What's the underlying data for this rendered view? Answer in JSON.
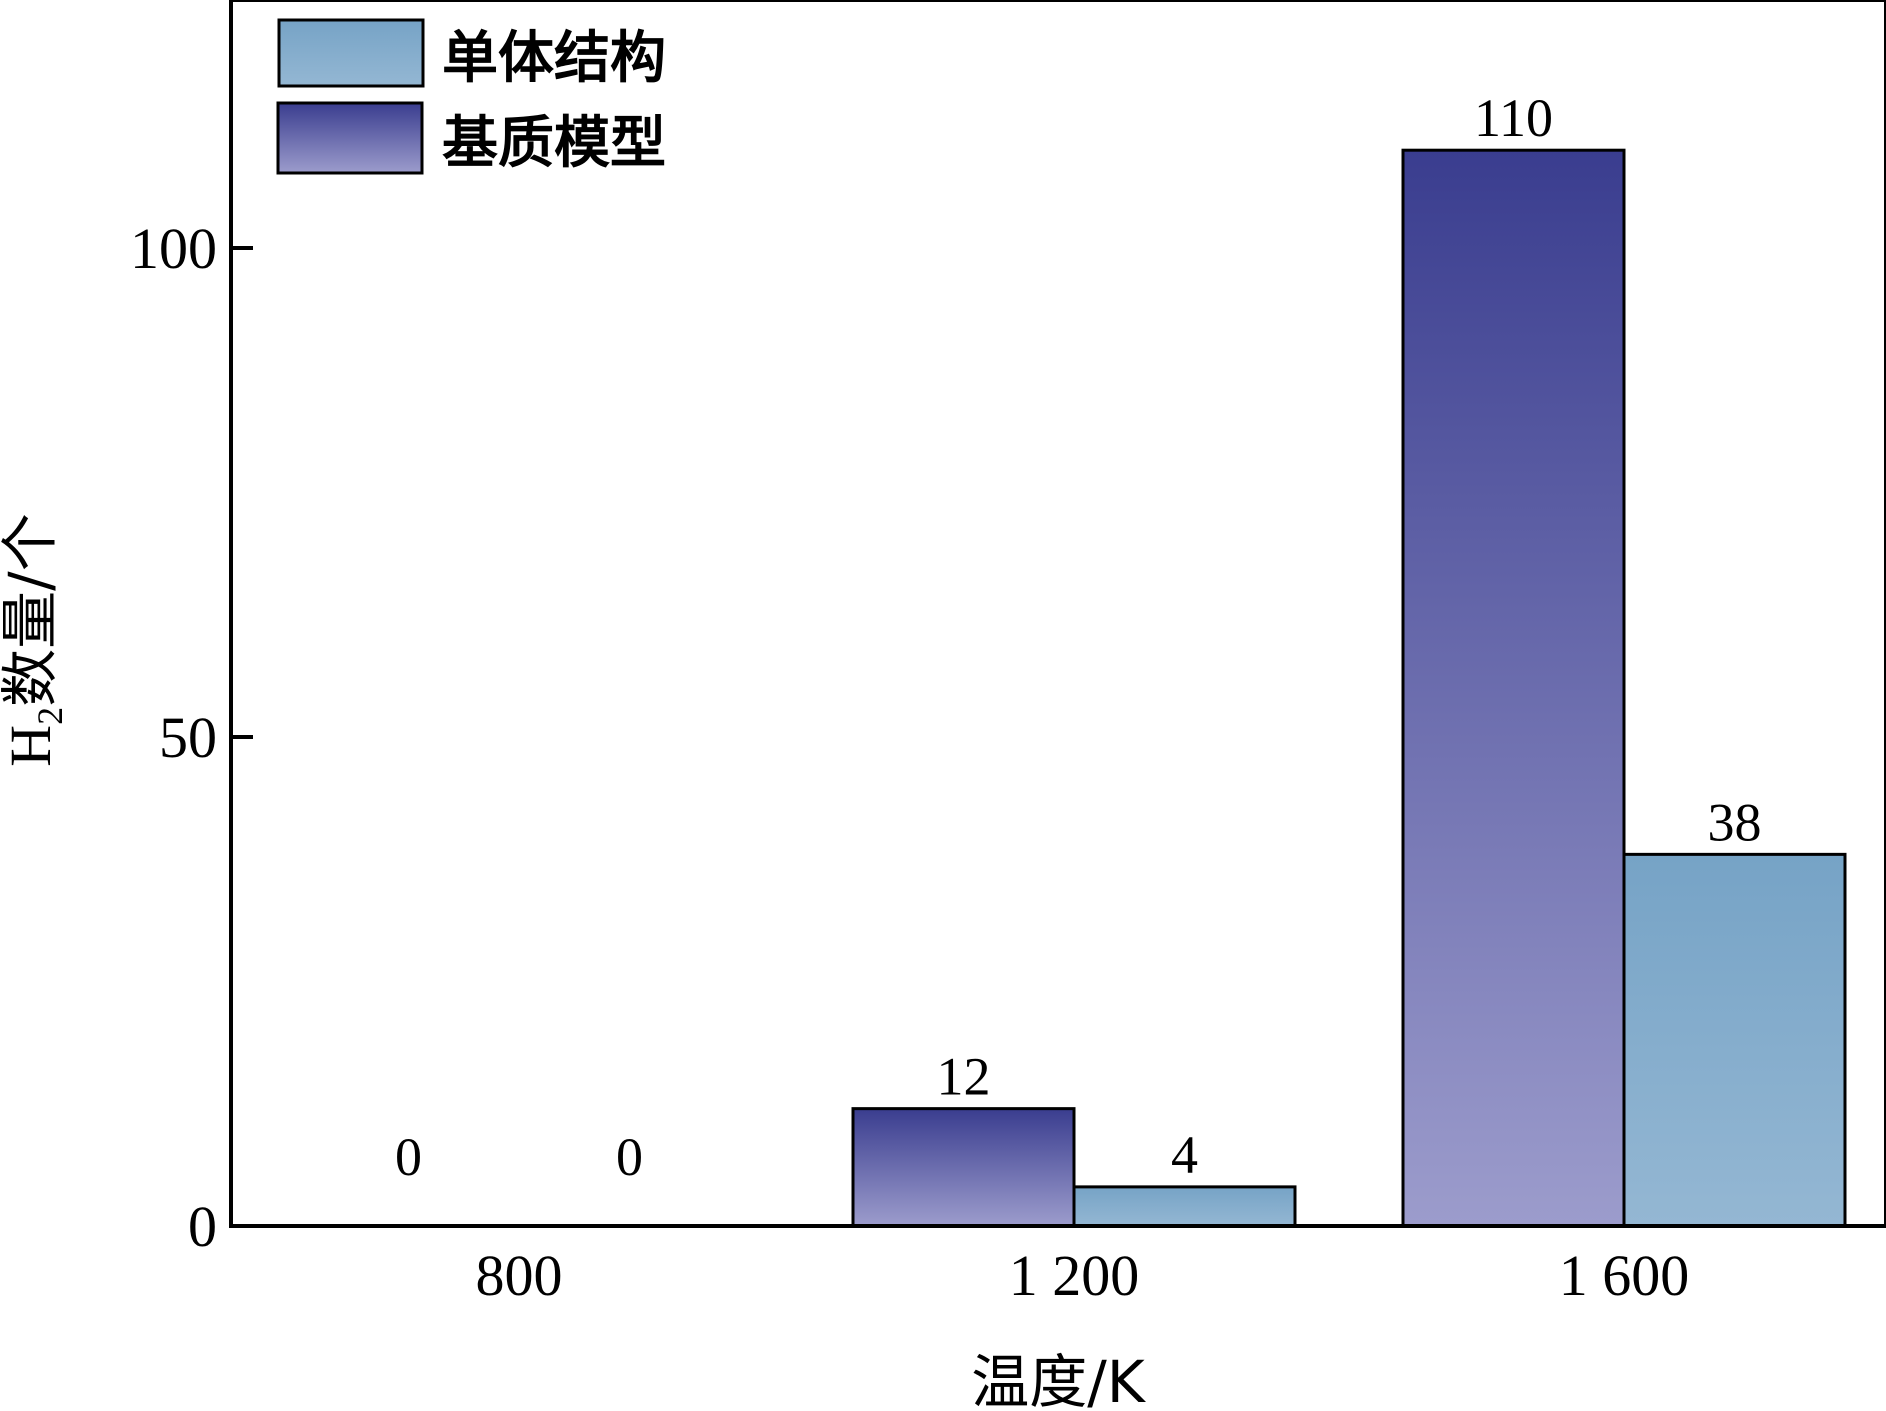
{
  "chart_data": {
    "type": "bar",
    "categories": [
      "800",
      "1 200",
      "1 600"
    ],
    "series": [
      {
        "name": "基质模型",
        "values": [
          0,
          12,
          110
        ],
        "color_top": "#3a3d8f",
        "color_bottom": "#9c9ccc"
      },
      {
        "name": "单体结构",
        "values": [
          0,
          4,
          38
        ],
        "color_top": "#76a3c6",
        "color_bottom": "#94b7d3"
      }
    ],
    "data_labels": [
      "0",
      "12",
      "110",
      "0",
      "4",
      "38"
    ],
    "xlabel": {
      "text": "温度/K"
    },
    "ylabel": {
      "prefix": "H",
      "subscript": "2",
      "suffix": "数量/个"
    },
    "yticks": [
      0,
      50,
      100
    ],
    "ylim": [
      0,
      125
    ],
    "legend": {
      "position": "top-left",
      "order": [
        "单体结构",
        "基质模型"
      ]
    },
    "grid": false
  }
}
